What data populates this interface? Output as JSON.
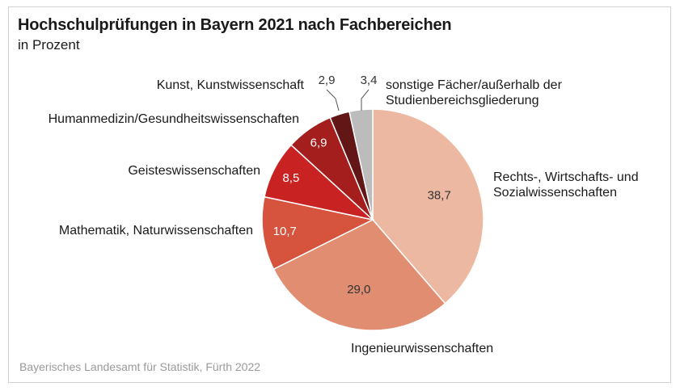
{
  "title": "Hochschulprüfungen in Bayern 2021 nach Fachbereichen",
  "subtitle": "in Prozent",
  "source": "Bayerisches Landesamt für Statistik, Fürth 2022",
  "chart_data": {
    "type": "pie",
    "title": "Hochschulprüfungen in Bayern 2021 nach Fachbereichen",
    "subtitle": "in Prozent",
    "slices": [
      {
        "label": "Rechts-, Wirtschafts- und Sozialwissenschaften",
        "label_lines": [
          "Rechts-, Wirtschafts- und",
          "Sozialwissenschaften"
        ],
        "value": 38.7,
        "value_text": "38,7",
        "color": "#ecb8a2"
      },
      {
        "label": "Ingenieurwissenschaften",
        "label_lines": [
          "Ingenieurwissenschaften"
        ],
        "value": 29.0,
        "value_text": "29,0",
        "color": "#e08d72"
      },
      {
        "label": "Mathematik, Naturwissenschaften",
        "label_lines": [
          "Mathematik, Naturwissenschaften"
        ],
        "value": 10.7,
        "value_text": "10,7",
        "color": "#d6533e"
      },
      {
        "label": "Geisteswissenschaften",
        "label_lines": [
          "Geisteswissenschaften"
        ],
        "value": 8.5,
        "value_text": "8,5",
        "color": "#c82222"
      },
      {
        "label": "Humanmedizin/Gesundheitswissenschaften",
        "label_lines": [
          "Humanmedizin/Gesundheitswissenschaften"
        ],
        "value": 6.9,
        "value_text": "6,9",
        "color": "#a51e1e"
      },
      {
        "label": "Kunst, Kunstwissenschaft",
        "label_lines": [
          "Kunst, Kunstwissenschaft"
        ],
        "value": 2.9,
        "value_text": "2,9",
        "color": "#621616"
      },
      {
        "label": "sonstige Fächer/außerhalb der Studienbereichsgliederung",
        "label_lines": [
          "sonstige Fächer/außerhalb der",
          "Studienbereichsgliederung"
        ],
        "value": 3.4,
        "value_text": "3,4",
        "color": "#bcbcbc"
      }
    ]
  }
}
